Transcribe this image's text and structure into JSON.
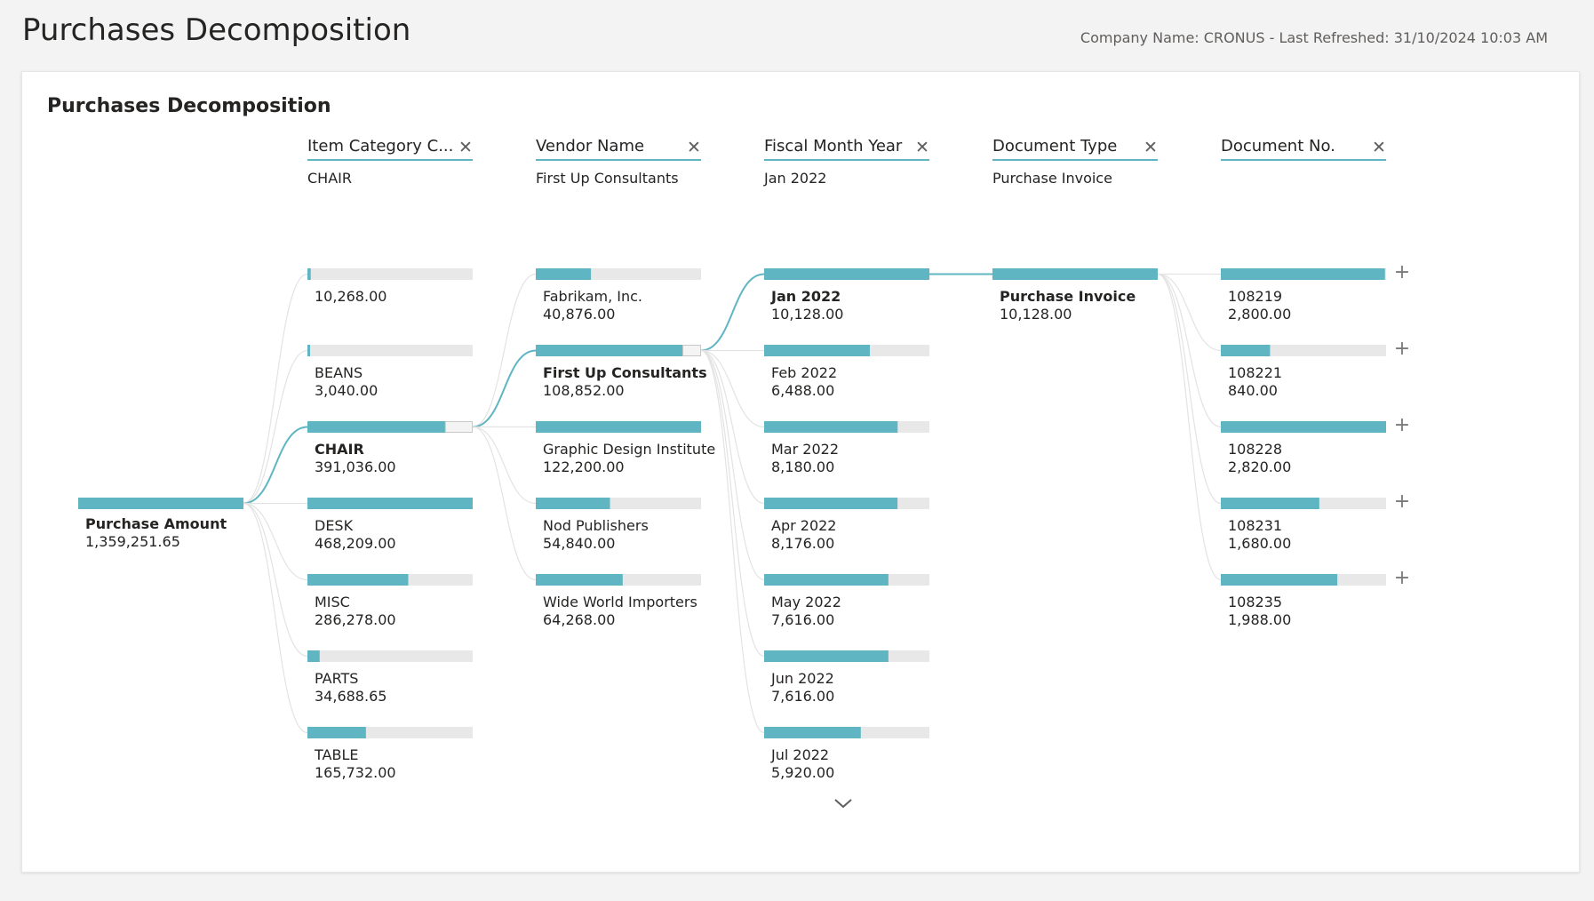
{
  "page": {
    "title": "Purchases Decomposition",
    "meta": "Company Name: CRONUS - Last Refreshed: 31/10/2024 10:03 AM"
  },
  "visual": {
    "title": "Purchases Decomposition"
  },
  "colors": {
    "bar": "#5fb6c2",
    "track": "#e8e8e8",
    "connector": "#5fb6c2",
    "faint_connector": "#e3e3e3"
  },
  "root": {
    "label": "Purchase Amount",
    "value": "1,359,251.65"
  },
  "levels": [
    {
      "header": "Item Category C...",
      "selected": "CHAIR",
      "nodes": [
        {
          "label": "",
          "value": "10,268.00",
          "fill": 0.02
        },
        {
          "label": "BEANS",
          "value": "3,040.00",
          "fill": 0.006
        },
        {
          "label": "CHAIR",
          "value": "391,036.00",
          "fill": 0.835,
          "selected": true,
          "expanded_fill": 0.23
        },
        {
          "label": "DESK",
          "value": "468,209.00",
          "fill": 1.0
        },
        {
          "label": "MISC",
          "value": "286,278.00",
          "fill": 0.61
        },
        {
          "label": "PARTS",
          "value": "34,688.65",
          "fill": 0.074
        },
        {
          "label": "TABLE",
          "value": "165,732.00",
          "fill": 0.354
        }
      ]
    },
    {
      "header": "Vendor Name",
      "selected": "First Up Consultants",
      "nodes": [
        {
          "label": "Fabrikam, Inc.",
          "value": "40,876.00",
          "fill": 0.334
        },
        {
          "label": "First Up Consultants",
          "value": "108,852.00",
          "fill": 0.89,
          "selected": true,
          "expanded_fill": 0.093
        },
        {
          "label": "Graphic Design Institute",
          "value": "122,200.00",
          "fill": 1.0
        },
        {
          "label": "Nod Publishers",
          "value": "54,840.00",
          "fill": 0.449
        },
        {
          "label": "Wide World Importers",
          "value": "64,268.00",
          "fill": 0.526
        }
      ]
    },
    {
      "header": "Fiscal Month Year",
      "selected": "Jan 2022",
      "nodes": [
        {
          "label": "Jan 2022",
          "value": "10,128.00",
          "fill": 1.0,
          "selected": true,
          "expanded_fill": 1.0
        },
        {
          "label": "Feb 2022",
          "value": "6,488.00",
          "fill": 0.64
        },
        {
          "label": "Mar 2022",
          "value": "8,180.00",
          "fill": 0.808
        },
        {
          "label": "Apr 2022",
          "value": "8,176.00",
          "fill": 0.807
        },
        {
          "label": "May 2022",
          "value": "7,616.00",
          "fill": 0.752
        },
        {
          "label": "Jun 2022",
          "value": "7,616.00",
          "fill": 0.752
        },
        {
          "label": "Jul 2022",
          "value": "5,920.00",
          "fill": 0.585
        }
      ],
      "has_more": true
    },
    {
      "header": "Document Type",
      "selected": "Purchase Invoice",
      "nodes": [
        {
          "label": "Purchase Invoice",
          "value": "10,128.00",
          "fill": 1.0,
          "selected": true,
          "expanded_fill": 1.0
        }
      ]
    },
    {
      "header": "Document No.",
      "selected": "",
      "nodes": [
        {
          "label": "108219",
          "value": "2,800.00",
          "fill": 0.993
        },
        {
          "label": "108221",
          "value": "840.00",
          "fill": 0.298
        },
        {
          "label": "108228",
          "value": "2,820.00",
          "fill": 1.0
        },
        {
          "label": "108231",
          "value": "1,680.00",
          "fill": 0.596
        },
        {
          "label": "108235",
          "value": "1,988.00",
          "fill": 0.705
        }
      ]
    }
  ]
}
